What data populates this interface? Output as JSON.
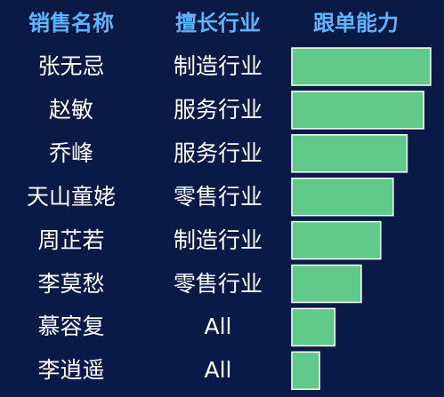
{
  "headers": {
    "name": "销售名称",
    "industry": "擅长行业",
    "capability": "跟单能力"
  },
  "colors": {
    "header_text": "#5fb3ff",
    "bar_fill": "#61c98a",
    "bar_stroke": "#ffffff"
  },
  "chart_data": {
    "type": "bar",
    "orientation": "horizontal",
    "categories": [
      "张无忌",
      "赵敏",
      "乔峰",
      "天山童姥",
      "周芷若",
      "李莫愁",
      "慕容复",
      "李逍遥"
    ],
    "industries": [
      "制造行业",
      "服务行业",
      "服务行业",
      "零售行业",
      "制造行业",
      "零售行业",
      "All",
      "All"
    ],
    "values": [
      100,
      95,
      83,
      73,
      64,
      50,
      31,
      20
    ],
    "xlim": [
      0,
      100
    ],
    "title": "",
    "xlabel": "",
    "ylabel": "",
    "grid": false,
    "legend": "none"
  }
}
